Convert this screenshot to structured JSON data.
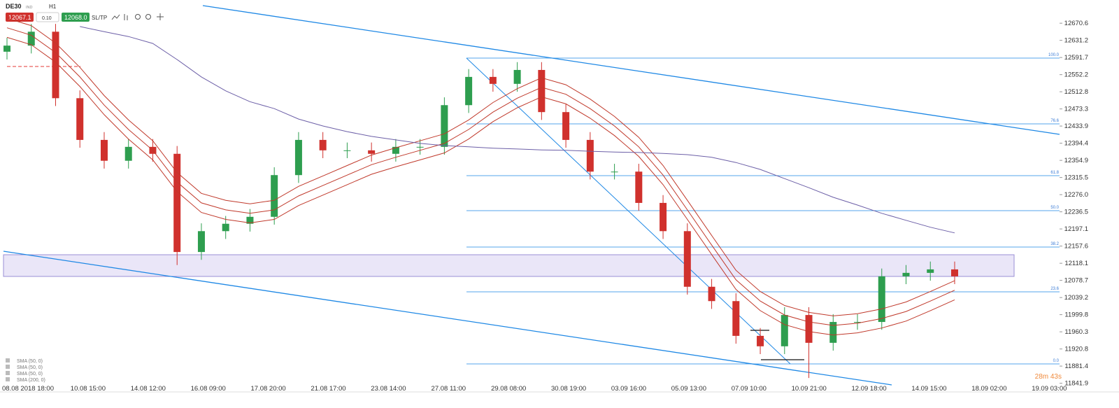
{
  "header": {
    "symbol": "DE30",
    "market": "IND",
    "interval": "H1",
    "sell": "12067.1",
    "volume": "0.10",
    "buy": "12068.0",
    "sltp": "SL/TP"
  },
  "timer": "28m 43s",
  "fib_levels": [
    "100.0",
    "76.6",
    "61.8",
    "50.0",
    "38.2",
    "23.6",
    "0.0"
  ],
  "chart_data": {
    "type": "candlestick",
    "ylim": [
      11822,
      12724
    ],
    "yticks": [
      12670.6,
      12631.2,
      12591.7,
      12552.2,
      12512.8,
      12473.3,
      12433.9,
      12394.4,
      12354.9,
      12315.5,
      {
        "value": 12276,
        "label": "12276.0"
      },
      12236.5,
      12197.1,
      12157.6,
      12118.1,
      12078.7,
      12039.2,
      11999.8,
      11960.3,
      11920.8,
      11881.4,
      11841.9
    ],
    "xticks": [
      "08.08 2018 18:00",
      "10.08 15:00",
      "14.08 12:00",
      "16.08 09:00",
      "17.08 20:00",
      "21.08 17:00",
      "23.08 14:00",
      "27.08 11:00",
      "29.08 08:00",
      "30.08 19:00",
      "03.09 16:00",
      "05.09 13:00",
      "07.09 10:00",
      "10.09 21:00",
      "12.09 18:00",
      "14.09 15:00",
      "18.09 02:00",
      "19.09 03:00"
    ],
    "open": [
      12605,
      12619,
      12651,
      12498,
      12402,
      12354,
      12386,
      12370,
      12144,
      12192,
      12209,
      12225,
      12321,
      12402,
      12378,
      12378,
      12370,
      12386,
      12386,
      12482,
      12547,
      12531,
      12563,
      12466,
      12402,
      12329,
      12329,
      12257,
      12192,
      12064,
      12031,
      11951,
      11927,
      11999,
      11935,
      11983,
      11983,
      12088,
      12096,
      12104
    ],
    "high": [
      12637,
      12669,
      12669,
      12516,
      12420,
      12404,
      12404,
      12388,
      12210,
      12227,
      12243,
      12339,
      12420,
      12420,
      12396,
      12396,
      12404,
      12404,
      12500,
      12565,
      12565,
      12581,
      12581,
      12484,
      12420,
      12347,
      12347,
      12275,
      12210,
      12082,
      12049,
      11969,
      12017,
      12017,
      12001,
      12001,
      12106,
      12114,
      12122,
      12122
    ],
    "low": [
      12587,
      12601,
      12480,
      12384,
      12336,
      12336,
      12352,
      12114,
      12126,
      12174,
      12191,
      12207,
      12303,
      12360,
      12360,
      12352,
      12352,
      12368,
      12368,
      12464,
      12513,
      12513,
      12448,
      12384,
      12311,
      12311,
      12239,
      12174,
      12046,
      12013,
      11933,
      11909,
      11909,
      11854,
      11917,
      11965,
      11965,
      12070,
      12078,
      12070
    ],
    "close": [
      12619,
      12651,
      12498,
      12402,
      12354,
      12386,
      12370,
      12144,
      12192,
      12209,
      12225,
      12321,
      12402,
      12378,
      12378,
      12370,
      12386,
      12386,
      12482,
      12547,
      12531,
      12563,
      12466,
      12402,
      12329,
      12329,
      12257,
      12192,
      12064,
      12031,
      11951,
      11927,
      11999,
      11935,
      11983,
      11983,
      12088,
      12096,
      12104,
      12088
    ],
    "up_color": "#2e9e4f",
    "down_color": "#d0312d",
    "series": [
      {
        "name": "SMA (50, 0)",
        "color": "#c0392b",
        "values": [
          12682,
          12665,
          12625,
          12569,
          12504,
          12448,
          12400,
          12327,
          12279,
          12263,
          12255,
          12263,
          12295,
          12319,
          12343,
          12367,
          12384,
          12400,
          12416,
          12448,
          12488,
          12520,
          12545,
          12529,
          12496,
          12456,
          12408,
          12343,
          12263,
          12182,
          12102,
          12053,
          12021,
          12005,
          11997,
          12002,
          12013,
          12029,
          12053,
          12078
        ]
      },
      {
        "name": "SMA (50, 0)",
        "color": "#c0392b",
        "values": [
          12660,
          12643,
          12603,
          12547,
          12482,
          12426,
          12378,
          12305,
          12257,
          12241,
          12233,
          12241,
          12273,
          12297,
          12321,
          12345,
          12362,
          12378,
          12394,
          12426,
          12466,
          12498,
          12523,
          12507,
          12474,
          12434,
          12386,
          12321,
          12241,
          12160,
          12080,
          12031,
          11999,
          11983,
          11975,
          11980,
          11991,
          12007,
          12031,
          12056
        ]
      },
      {
        "name": "SMA (50, 0)",
        "color": "#c0392b",
        "values": [
          12638,
          12621,
          12581,
          12525,
          12460,
          12404,
          12356,
          12283,
          12235,
          12219,
          12211,
          12219,
          12251,
          12275,
          12299,
          12323,
          12340,
          12356,
          12372,
          12404,
          12444,
          12476,
          12501,
          12485,
          12452,
          12412,
          12364,
          12299,
          12219,
          12138,
          12058,
          12009,
          11977,
          11961,
          11953,
          11958,
          11969,
          11985,
          12009,
          12034
        ]
      },
      {
        "name": "SMA (200, 0)",
        "color": "#6c5fa7",
        "values": [
          null,
          null,
          null,
          12663,
          12651,
          12640,
          12624,
          12587,
          12547,
          12515,
          12490,
          12474,
          12450,
          12434,
          12421,
          12410,
          12402,
          12394,
          12389,
          12386,
          12383,
          12381,
          12379,
          12378,
          12376,
          12374,
          12373,
          12371,
          12368,
          12362,
          12350,
          12334,
          12313,
          12292,
          12270,
          12252,
          12233,
          12217,
          12201,
          12188
        ]
      }
    ]
  }
}
